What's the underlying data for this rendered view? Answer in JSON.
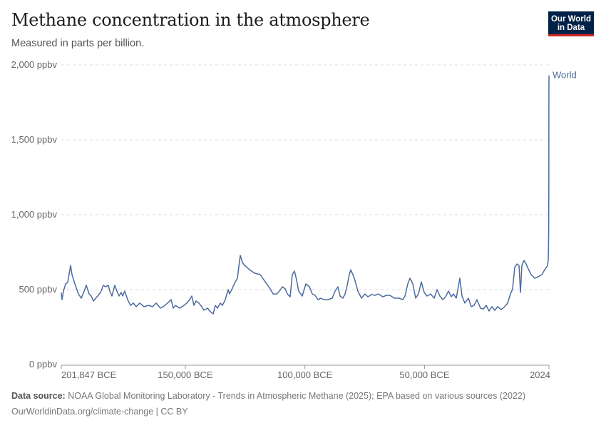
{
  "header": {
    "title": "Methane concentration in the atmosphere",
    "subtitle": "Measured in parts per billion."
  },
  "logo": {
    "line1": "Our World",
    "line2": "in Data",
    "bg": "#002147",
    "accent": "#ce261e"
  },
  "footer": {
    "source_label": "Data source:",
    "source_text": "NOAA Global Monitoring Laboratory - Trends in Atmospheric Methane (2025); EPA based on various sources (2022)",
    "link": "OurWorldinData.org/climate-change | CC BY"
  },
  "chart_data": {
    "type": "line",
    "title": "Methane concentration in the atmosphere",
    "subtitle": "Measured in parts per billion.",
    "xlim": [
      -201847,
      2024
    ],
    "ylim": [
      0,
      2000
    ],
    "grid": true,
    "x_ticks": [
      {
        "value": -201847,
        "label": "201,847 BCE"
      },
      {
        "value": -150000,
        "label": "150,000 BCE"
      },
      {
        "value": -100000,
        "label": "100,000 BCE"
      },
      {
        "value": -50000,
        "label": "50,000 BCE"
      },
      {
        "value": 2024,
        "label": "2024"
      }
    ],
    "y_ticks": [
      {
        "value": 0,
        "label": "0 ppbv"
      },
      {
        "value": 500,
        "label": "500 ppbv"
      },
      {
        "value": 1000,
        "label": "1,000 ppbv"
      },
      {
        "value": 1500,
        "label": "1,500 ppbv"
      },
      {
        "value": 2000,
        "label": "2,000 ppbv"
      }
    ],
    "series": [
      {
        "name": "World",
        "color": "#4c6a9c",
        "points": [
          [
            -201847,
            481
          ],
          [
            -201549,
            433
          ],
          [
            -200953,
            490
          ],
          [
            -200059,
            538
          ],
          [
            -199164,
            548
          ],
          [
            -197972,
            662
          ],
          [
            -197376,
            600
          ],
          [
            -196184,
            538
          ],
          [
            -194694,
            471
          ],
          [
            -193502,
            443
          ],
          [
            -192309,
            490
          ],
          [
            -191415,
            529
          ],
          [
            -190223,
            471
          ],
          [
            -189328,
            457
          ],
          [
            -188434,
            424
          ],
          [
            -186944,
            452
          ],
          [
            -185454,
            481
          ],
          [
            -184262,
            529
          ],
          [
            -183367,
            519
          ],
          [
            -182175,
            529
          ],
          [
            -181579,
            490
          ],
          [
            -180685,
            457
          ],
          [
            -179493,
            529
          ],
          [
            -178598,
            490
          ],
          [
            -177704,
            457
          ],
          [
            -176810,
            481
          ],
          [
            -176214,
            457
          ],
          [
            -175320,
            490
          ],
          [
            -174128,
            433
          ],
          [
            -172935,
            395
          ],
          [
            -171743,
            410
          ],
          [
            -170551,
            386
          ],
          [
            -169060,
            410
          ],
          [
            -167272,
            386
          ],
          [
            -165484,
            395
          ],
          [
            -163695,
            386
          ],
          [
            -162205,
            410
          ],
          [
            -160417,
            376
          ],
          [
            -159224,
            386
          ],
          [
            -157436,
            410
          ],
          [
            -155946,
            433
          ],
          [
            -155052,
            376
          ],
          [
            -154157,
            395
          ],
          [
            -152369,
            376
          ],
          [
            -150581,
            395
          ],
          [
            -149388,
            410
          ],
          [
            -148196,
            433
          ],
          [
            -147302,
            457
          ],
          [
            -146408,
            395
          ],
          [
            -145514,
            424
          ],
          [
            -144321,
            410
          ],
          [
            -143129,
            386
          ],
          [
            -142235,
            362
          ],
          [
            -140745,
            376
          ],
          [
            -139254,
            348
          ],
          [
            -138360,
            338
          ],
          [
            -137466,
            395
          ],
          [
            -136572,
            376
          ],
          [
            -135379,
            410
          ],
          [
            -134485,
            395
          ],
          [
            -133293,
            433
          ],
          [
            -132101,
            500
          ],
          [
            -131504,
            471
          ],
          [
            -130312,
            510
          ],
          [
            -129418,
            543
          ],
          [
            -128226,
            576
          ],
          [
            -127033,
            729
          ],
          [
            -126139,
            681
          ],
          [
            -125245,
            662
          ],
          [
            -123159,
            633
          ],
          [
            -121072,
            610
          ],
          [
            -118688,
            600
          ],
          [
            -116601,
            552
          ],
          [
            -114515,
            505
          ],
          [
            -113322,
            471
          ],
          [
            -111832,
            471
          ],
          [
            -110640,
            490
          ],
          [
            -109448,
            519
          ],
          [
            -108255,
            505
          ],
          [
            -107361,
            471
          ],
          [
            -106169,
            452
          ],
          [
            -105275,
            600
          ],
          [
            -104381,
            624
          ],
          [
            -103785,
            586
          ],
          [
            -102592,
            490
          ],
          [
            -101102,
            457
          ],
          [
            -99611,
            538
          ],
          [
            -98121,
            519
          ],
          [
            -96929,
            471
          ],
          [
            -95736,
            462
          ],
          [
            -94544,
            433
          ],
          [
            -93352,
            443
          ],
          [
            -92160,
            433
          ],
          [
            -90371,
            433
          ],
          [
            -88583,
            443
          ],
          [
            -87391,
            490
          ],
          [
            -86198,
            519
          ],
          [
            -85304,
            457
          ],
          [
            -84112,
            443
          ],
          [
            -83218,
            471
          ],
          [
            -82324,
            529
          ],
          [
            -81429,
            600
          ],
          [
            -80833,
            633
          ],
          [
            -79343,
            576
          ],
          [
            -77853,
            490
          ],
          [
            -76362,
            443
          ],
          [
            -74872,
            471
          ],
          [
            -73680,
            452
          ],
          [
            -72189,
            467
          ],
          [
            -70699,
            462
          ],
          [
            -69209,
            471
          ],
          [
            -67420,
            452
          ],
          [
            -65930,
            462
          ],
          [
            -64440,
            462
          ],
          [
            -62651,
            443
          ],
          [
            -60565,
            443
          ],
          [
            -59074,
            433
          ],
          [
            -58180,
            457
          ],
          [
            -56988,
            538
          ],
          [
            -56094,
            576
          ],
          [
            -54901,
            538
          ],
          [
            -53709,
            443
          ],
          [
            -52517,
            471
          ],
          [
            -51325,
            552
          ],
          [
            -50132,
            481
          ],
          [
            -48940,
            457
          ],
          [
            -47450,
            471
          ],
          [
            -45959,
            443
          ],
          [
            -44767,
            500
          ],
          [
            -43575,
            457
          ],
          [
            -42383,
            433
          ],
          [
            -41190,
            452
          ],
          [
            -39998,
            490
          ],
          [
            -38806,
            452
          ],
          [
            -37912,
            471
          ],
          [
            -36719,
            443
          ],
          [
            -35229,
            576
          ],
          [
            -34335,
            457
          ],
          [
            -33142,
            410
          ],
          [
            -31652,
            443
          ],
          [
            -30460,
            386
          ],
          [
            -29268,
            395
          ],
          [
            -28075,
            433
          ],
          [
            -26585,
            376
          ],
          [
            -25393,
            371
          ],
          [
            -24201,
            395
          ],
          [
            -23008,
            357
          ],
          [
            -21816,
            386
          ],
          [
            -20624,
            362
          ],
          [
            -19432,
            386
          ],
          [
            -17941,
            367
          ],
          [
            -16451,
            386
          ],
          [
            -15259,
            410
          ],
          [
            -14066,
            471
          ],
          [
            -13172,
            505
          ],
          [
            -12278,
            648
          ],
          [
            -11384,
            671
          ],
          [
            -10490,
            662
          ],
          [
            -9894,
            481
          ],
          [
            -9297,
            662
          ],
          [
            -8403,
            695
          ],
          [
            -7509,
            671
          ],
          [
            -6913,
            648
          ],
          [
            -5423,
            600
          ],
          [
            -3932,
            576
          ],
          [
            -2442,
            586
          ],
          [
            -952,
            600
          ],
          [
            240,
            633
          ],
          [
            1432,
            660
          ],
          [
            1730,
            700
          ],
          [
            1750,
            720
          ],
          [
            1850,
            790
          ],
          [
            1900,
            880
          ],
          [
            1950,
            1150
          ],
          [
            1985,
            1650
          ],
          [
            2000,
            1770
          ],
          [
            2024,
            1930
          ]
        ]
      }
    ]
  }
}
